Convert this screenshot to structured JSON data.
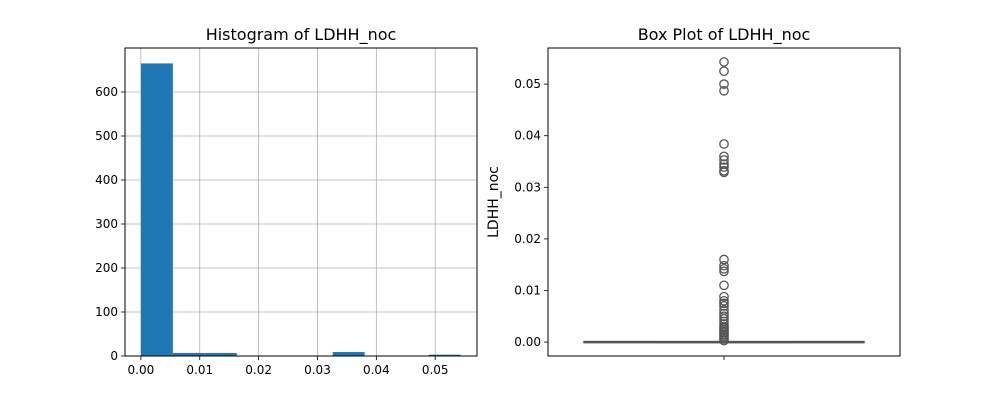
{
  "chart_data": [
    {
      "type": "histogram",
      "title": "Histogram of LDHH_noc",
      "xlabel": "",
      "ylabel": "",
      "xlim": [
        -0.0027,
        0.0571
      ],
      "ylim": [
        0,
        700
      ],
      "xticks": [
        0.0,
        0.01,
        0.02,
        0.03,
        0.04,
        0.05
      ],
      "xtick_labels": [
        "0.00",
        "0.01",
        "0.02",
        "0.03",
        "0.04",
        "0.05"
      ],
      "yticks": [
        0,
        100,
        200,
        300,
        400,
        500,
        600
      ],
      "ytick_labels": [
        "0",
        "100",
        "200",
        "300",
        "400",
        "500",
        "600"
      ],
      "grid": true,
      "bar_color": "#1f77b4",
      "bins": [
        0.0,
        0.00543,
        0.01086,
        0.01629,
        0.02172,
        0.02715,
        0.03258,
        0.03801,
        0.04344,
        0.04887,
        0.0543
      ],
      "counts": [
        665,
        7,
        7,
        0,
        0,
        0,
        9,
        0,
        0,
        3
      ]
    },
    {
      "type": "box",
      "title": "Box Plot of LDHH_noc",
      "xlabel": "",
      "ylabel": "LDHH_noc",
      "ylim": [
        -0.0027,
        0.057
      ],
      "yticks": [
        0.0,
        0.01,
        0.02,
        0.03,
        0.04,
        0.05
      ],
      "ytick_labels": [
        "0.00",
        "0.01",
        "0.02",
        "0.03",
        "0.04",
        "0.05"
      ],
      "grid": false,
      "box": {
        "min": 0.0,
        "q1": 0.0,
        "median": 0.0,
        "q3": 0.0,
        "max": 0.0
      },
      "outliers": [
        0.0543,
        0.0525,
        0.05,
        0.0487,
        0.0384,
        0.036,
        0.0353,
        0.0345,
        0.0339,
        0.0332,
        0.0329,
        0.016,
        0.0148,
        0.0142,
        0.0137,
        0.011,
        0.0088,
        0.008,
        0.0075,
        0.007,
        0.0062,
        0.0055,
        0.005,
        0.0045,
        0.004,
        0.0035,
        0.003,
        0.0027,
        0.0024,
        0.0021,
        0.0018,
        0.0015,
        0.0012,
        0.0009,
        0.0006,
        0.0003
      ],
      "line_color": "#555555"
    }
  ]
}
